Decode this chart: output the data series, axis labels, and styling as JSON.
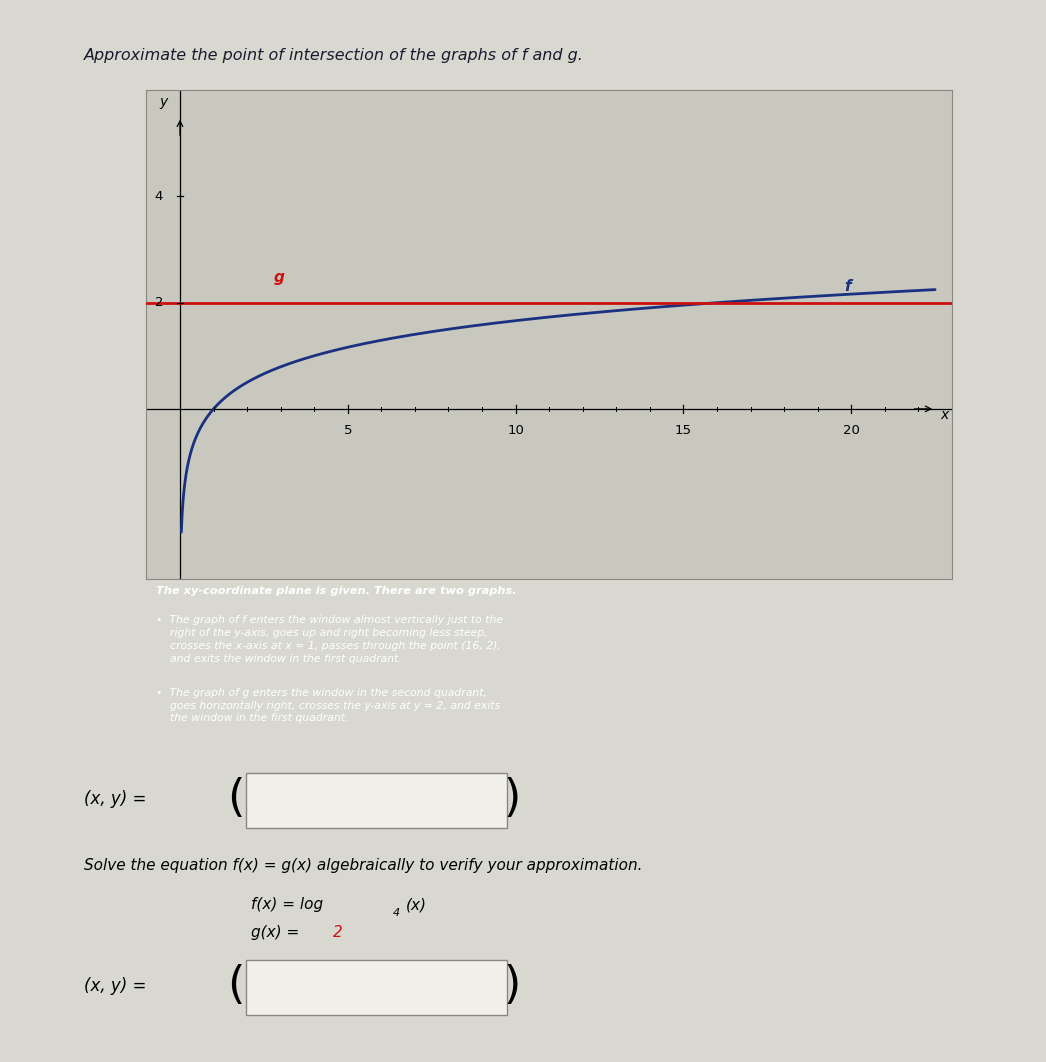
{
  "title": "Approximate the point of intersection of the graphs of f and g.",
  "title_fontsize": 11.5,
  "title_color": "#1a1a2e",
  "plot_bg_color": "#c8c8be",
  "outer_bg_color": "#c8c8be",
  "page_bg_color": "#d8d8d0",
  "top_bar_color": "#3a3a5c",
  "graph_border_color": "#888880",
  "xlabel": "x",
  "ylabel": "y",
  "xlim": [
    -1,
    23
  ],
  "ylim": [
    -3.2,
    6
  ],
  "xticks": [
    5,
    10,
    15,
    20
  ],
  "ytick_4": 4,
  "ytick_2": 2,
  "f_color": "#1a3080",
  "g_color": "#cc1111",
  "f_label": "f",
  "g_label": "g",
  "description_bg": "#5060808",
  "desc_bg": "#506080",
  "description_text_color": "#ffffff",
  "answer_label": "(x, y) =",
  "solve_text": "Solve the equation f(x) = g(x) algebraically to verify your approximation.",
  "fx_label": "f(x) = log",
  "fx_sub": "4",
  "fx_end": "(x)",
  "gx_label": "g(x) = ",
  "gx_val": "2",
  "gx_color": "#cc1111",
  "box_color": "#f0f0e8",
  "box_border": "#888880",
  "desc_title": "The xy-coordinate plane is given. There are two graphs.",
  "desc_b1_lines": [
    "The graph of f enters the window almost vertically just to the",
    "right of the y-axis, goes up and right becoming less steep,",
    "crosses the x-axis at x = 1, passes through the point (16, 2),",
    "and exits the window in the first quadrant."
  ],
  "desc_b2_lines": [
    "The graph of g enters the window in the second quadrant,",
    "goes horizontally right, crosses the y-axis at y = 2, and exits",
    "the window in the first quadrant."
  ]
}
